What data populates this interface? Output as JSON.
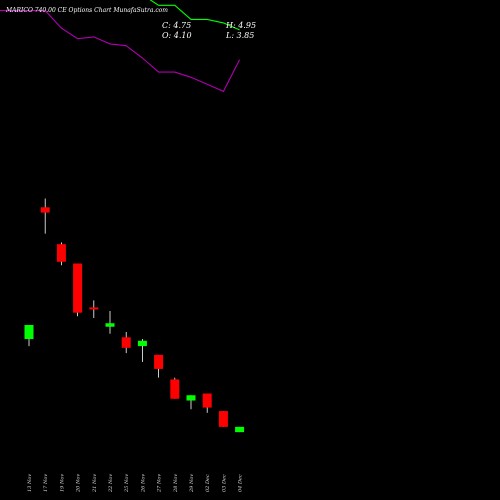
{
  "header": {
    "title": "MARICO 740.00  CE Options  Chart MunafaSutra.com",
    "close": "C: 4.75",
    "high": "H: 4.95",
    "open": "O: 4.10",
    "low": "L: 3.85"
  },
  "colors": {
    "background": "#000000",
    "up": "#00ff00",
    "down": "#ff0000",
    "upper_line": "#00ff00",
    "lower_line": "#b000b0",
    "wick": "#ffffff"
  },
  "chart_data": {
    "type": "candlestick",
    "x": [
      "13 Nov",
      "17 Nov",
      "19 Nov",
      "20 Nov",
      "21 Nov",
      "22 Nov",
      "25 Nov",
      "26 Nov",
      "27 Nov",
      "28 Nov",
      "29 Nov",
      "02 Dec",
      "03 Dec",
      "04 Dec"
    ],
    "ohlc": [
      {
        "o": 8.0,
        "h": 8.4,
        "l": 7.8,
        "c": 8.4,
        "dir": "up"
      },
      {
        "o": 11.75,
        "h": 12.0,
        "l": 11.0,
        "c": 11.6,
        "dir": "down"
      },
      {
        "o": 10.7,
        "h": 10.75,
        "l": 10.1,
        "c": 10.2,
        "dir": "down"
      },
      {
        "o": 10.15,
        "h": 10.15,
        "l": 8.65,
        "c": 8.75,
        "dir": "down"
      },
      {
        "o": 8.9,
        "h": 9.1,
        "l": 8.6,
        "c": 8.85,
        "dir": "down"
      },
      {
        "o": 8.35,
        "h": 8.8,
        "l": 8.15,
        "c": 8.45,
        "dir": "up"
      },
      {
        "o": 8.05,
        "h": 8.2,
        "l": 7.6,
        "c": 7.75,
        "dir": "down"
      },
      {
        "o": 7.8,
        "h": 8.0,
        "l": 7.35,
        "c": 7.95,
        "dir": "up"
      },
      {
        "o": 7.55,
        "h": 7.55,
        "l": 6.9,
        "c": 7.15,
        "dir": "down"
      },
      {
        "o": 6.85,
        "h": 6.9,
        "l": 6.3,
        "c": 6.3,
        "dir": "down"
      },
      {
        "o": 6.25,
        "h": 6.4,
        "l": 6.0,
        "c": 6.4,
        "dir": "up"
      },
      {
        "o": 6.45,
        "h": 6.45,
        "l": 5.9,
        "c": 6.05,
        "dir": "down"
      },
      {
        "o": 5.95,
        "h": 5.95,
        "l": 5.5,
        "c": 5.5,
        "dir": "down"
      },
      {
        "o": 5.35,
        "h": 5.5,
        "l": 5.35,
        "c": 5.5,
        "dir": "up"
      }
    ],
    "ylim": [
      4.5,
      16
    ],
    "upper_band": [
      null,
      18.0,
      20.15,
      19.35,
      18.55,
      18.0,
      18.0,
      17.8,
      17.5,
      17.5,
      17.1,
      17.1,
      17.0,
      16.8
    ],
    "lower_band": [
      null,
      17.35,
      16.85,
      16.55,
      16.6,
      16.4,
      16.35,
      16.0,
      15.6,
      15.6,
      15.45,
      15.25,
      15.05,
      15.95
    ],
    "grid": false,
    "legend": "none"
  }
}
